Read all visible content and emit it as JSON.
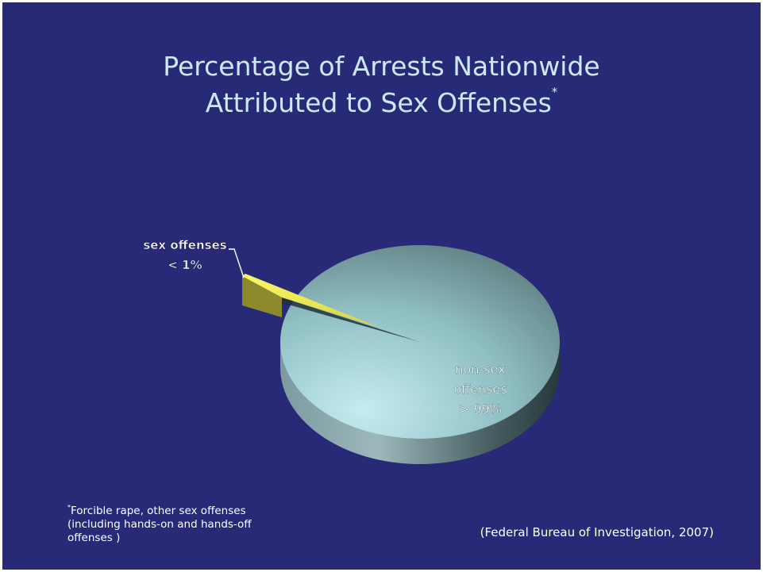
{
  "title_line1": "Percentage of Arrests Nationwide",
  "title_line2": "Attributed to Sex Offenses",
  "title_marker": "*",
  "chart_data": {
    "type": "pie",
    "title": "Percentage of Arrests Nationwide Attributed to Sex Offenses*",
    "exploded_slice": "sex offenses",
    "slices": [
      {
        "label_lines": [
          "sex offenses",
          "< 1%"
        ],
        "value": 1,
        "color": "#eeea48"
      },
      {
        "label_lines": [
          "non-sex",
          "offenses",
          "> 99%"
        ],
        "value": 99,
        "color": "#8fbfc3"
      }
    ]
  },
  "footnote": {
    "marker": "*",
    "line1": "Forcible rape, other sex offenses",
    "line2": "(including hands-on and hands-off",
    "line3": "offenses )"
  },
  "source": "(Federal Bureau of Investigation, 2007)"
}
